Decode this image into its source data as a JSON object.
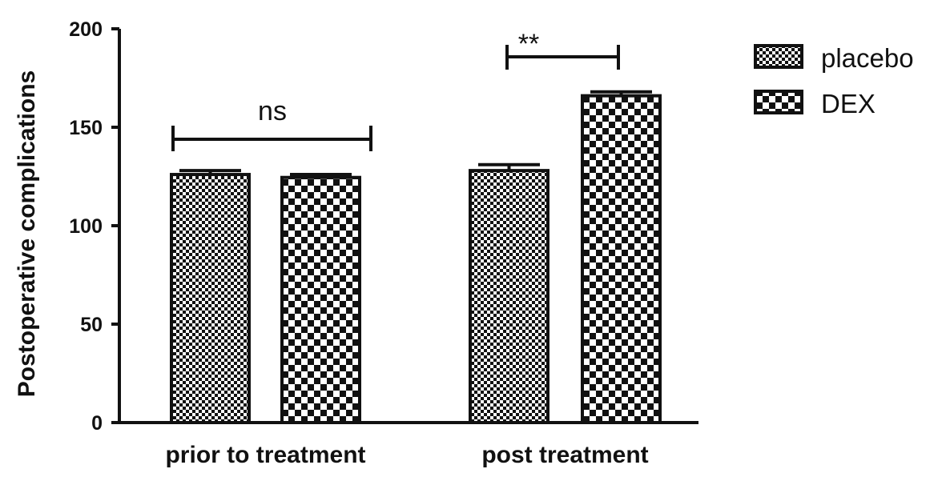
{
  "chart_data": {
    "type": "bar",
    "title": "",
    "xlabel": "",
    "ylabel": "Postoperative complications",
    "ylim": [
      0,
      200
    ],
    "yticks": [
      0,
      50,
      100,
      150,
      200
    ],
    "grid": false,
    "legend_position": "top-right",
    "categories": [
      "prior to treatment",
      "post treatment"
    ],
    "series": [
      {
        "name": "placebo",
        "pattern": "fine-checker",
        "values": [
          126,
          128
        ],
        "errors": [
          2,
          3
        ]
      },
      {
        "name": "DEX",
        "pattern": "coarse-checker",
        "values": [
          124.5,
          166
        ],
        "errors": [
          1.5,
          2
        ]
      }
    ],
    "annotations": [
      {
        "text": "ns",
        "category": 0
      },
      {
        "text": "**",
        "category": 1
      }
    ]
  },
  "colors": {
    "ink": "#111111",
    "background": "#ffffff"
  }
}
